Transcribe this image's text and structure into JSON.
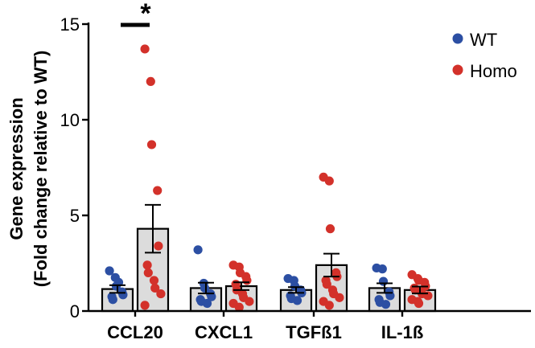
{
  "chart_data": {
    "type": "bar",
    "title": "",
    "xlabel": "",
    "ylabel_line1": "Gene expression",
    "ylabel_line2": "(Fold change relative to WT)",
    "ylim": [
      0,
      15
    ],
    "yticks": [
      0,
      5,
      10,
      15
    ],
    "ytick_labels": [
      "0",
      "5",
      "10",
      "15"
    ],
    "categories": [
      "CCL20",
      "CXCL1",
      "TGFß1",
      "IL-1ß"
    ],
    "legend": {
      "position": "top-right"
    },
    "significance": [
      {
        "category": "CCL20",
        "label": "*"
      }
    ],
    "series": [
      {
        "name": "WT",
        "color": "#2c4fa3",
        "values": [
          1.15,
          1.2,
          1.1,
          1.2
        ],
        "sem": [
          0.2,
          0.28,
          0.15,
          0.25
        ],
        "points": [
          [
            2.1,
            1.75,
            1.3,
            1.0,
            0.85,
            0.75,
            0.6,
            1.5
          ],
          [
            3.2,
            1.45,
            1.2,
            0.9,
            0.75,
            0.6,
            0.5,
            0.4
          ],
          [
            1.7,
            1.6,
            1.3,
            1.1,
            0.95,
            0.8,
            0.65,
            0.55
          ],
          [
            2.25,
            2.2,
            1.55,
            1.0,
            0.8,
            0.6,
            0.45,
            0.35
          ]
        ]
      },
      {
        "name": "Homo",
        "color": "#d3312a",
        "values": [
          4.3,
          1.3,
          2.4,
          1.1
        ],
        "sem": [
          1.25,
          0.2,
          0.6,
          0.18
        ],
        "points": [
          [
            13.7,
            12.0,
            8.7,
            6.3,
            3.4,
            2.4,
            2.0,
            1.6,
            1.2,
            0.9,
            0.3
          ],
          [
            2.4,
            2.3,
            2.0,
            1.8,
            1.6,
            1.4,
            1.1,
            0.9,
            0.7,
            0.5,
            0.4,
            0.2
          ],
          [
            7.0,
            6.8,
            4.3,
            2.0,
            1.8,
            1.6,
            1.4,
            1.1,
            0.9,
            0.7,
            0.5,
            0.3
          ],
          [
            1.9,
            1.7,
            1.6,
            1.5,
            1.3,
            1.2,
            1.1,
            1.0,
            0.9,
            0.8,
            0.6,
            0.5,
            0.4
          ]
        ]
      }
    ]
  }
}
